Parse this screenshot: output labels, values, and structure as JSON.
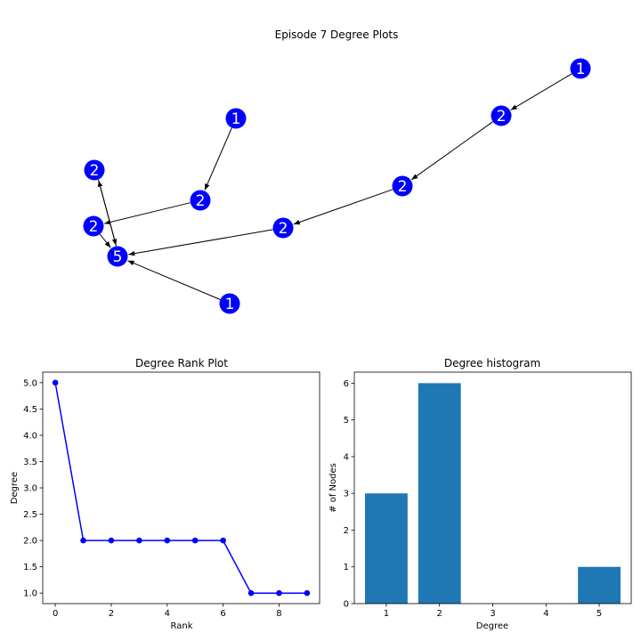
{
  "figure": {
    "title": "Episode 7 Degree Plots"
  },
  "colors": {
    "node": "#0000ff",
    "node_label": "#ffffff",
    "edge": "#000000",
    "rank_line": "#0000ff",
    "hist_bar": "#1f77b4",
    "axis": "#000000"
  },
  "chart_data": [
    {
      "type": "network",
      "nodes": [
        {
          "id": "n0",
          "label": "1"
        },
        {
          "id": "n1",
          "label": "2"
        },
        {
          "id": "n2",
          "label": "1"
        },
        {
          "id": "n3",
          "label": "2"
        },
        {
          "id": "n4",
          "label": "2"
        },
        {
          "id": "n5",
          "label": "2"
        },
        {
          "id": "n6",
          "label": "2"
        },
        {
          "id": "n7",
          "label": "2"
        },
        {
          "id": "n8",
          "label": "5"
        },
        {
          "id": "n9",
          "label": "1"
        }
      ],
      "edges": [
        {
          "from": "n0",
          "to": "n1"
        },
        {
          "from": "n1",
          "to": "n4"
        },
        {
          "from": "n4",
          "to": "n7"
        },
        {
          "from": "n7",
          "to": "n8"
        },
        {
          "from": "n2",
          "to": "n5"
        },
        {
          "from": "n5",
          "to": "n6"
        },
        {
          "from": "n6",
          "to": "n8"
        },
        {
          "from": "n9",
          "to": "n8"
        },
        {
          "from": "n8",
          "to": "n3"
        },
        {
          "from": "n3",
          "to": "n8"
        }
      ]
    },
    {
      "type": "line",
      "title": "Degree Rank Plot",
      "xlabel": "Rank",
      "ylabel": "Degree",
      "x": [
        0,
        1,
        2,
        3,
        4,
        5,
        6,
        7,
        8,
        9
      ],
      "y": [
        5,
        2,
        2,
        2,
        2,
        2,
        2,
        1,
        1,
        1
      ],
      "xlim": [
        -0.45,
        9.45
      ],
      "ylim": [
        0.8,
        5.2
      ],
      "xticks": [
        0,
        2,
        4,
        6,
        8
      ],
      "xtick_labels": [
        "0",
        "2",
        "4",
        "6",
        "8"
      ],
      "yticks": [
        1.0,
        1.5,
        2.0,
        2.5,
        3.0,
        3.5,
        4.0,
        4.5,
        5.0
      ],
      "ytick_labels": [
        "1.0",
        "1.5",
        "2.0",
        "2.5",
        "3.0",
        "3.5",
        "4.0",
        "4.5",
        "5.0"
      ],
      "markers": true,
      "grid": false
    },
    {
      "type": "bar",
      "title": "Degree histogram",
      "xlabel": "Degree",
      "ylabel": "# of Nodes",
      "categories": [
        1,
        2,
        5
      ],
      "values": [
        3,
        6,
        1
      ],
      "xlim": [
        0.4,
        5.6
      ],
      "ylim": [
        0,
        6.3
      ],
      "xticks": [
        1,
        2,
        3,
        4,
        5
      ],
      "xtick_labels": [
        "1",
        "2",
        "3",
        "4",
        "5"
      ],
      "yticks": [
        0,
        1,
        2,
        3,
        4,
        5,
        6
      ],
      "ytick_labels": [
        "0",
        "1",
        "2",
        "3",
        "4",
        "5",
        "6"
      ],
      "bar_width": 0.8,
      "grid": false
    }
  ]
}
